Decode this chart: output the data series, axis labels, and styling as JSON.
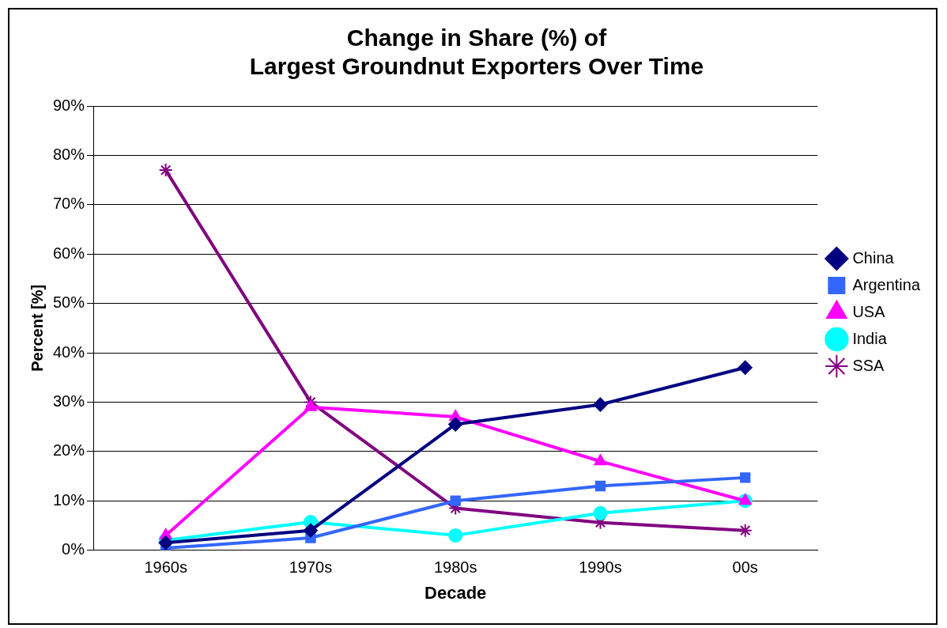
{
  "chart_data": {
    "type": "line",
    "title": [
      "Change in Share (%) of",
      "Largest Groundnut Exporters Over Time"
    ],
    "xlabel": "Decade",
    "ylabel": "Percent [%]",
    "categories": [
      "1960s",
      "1970s",
      "1980s",
      "1990s",
      "00s"
    ],
    "ylim": [
      0,
      90
    ],
    "yticks": [
      {
        "value": 0,
        "label": "0%"
      },
      {
        "value": 10,
        "label": "10%"
      },
      {
        "value": 20,
        "label": "20%"
      },
      {
        "value": 30,
        "label": "30%"
      },
      {
        "value": 40,
        "label": "40%"
      },
      {
        "value": 50,
        "label": "50%"
      },
      {
        "value": 60,
        "label": "60%"
      },
      {
        "value": 70,
        "label": "70%"
      },
      {
        "value": 80,
        "label": "80%"
      },
      {
        "value": 90,
        "label": "90%"
      }
    ],
    "grid": "y",
    "legend": "right",
    "series": [
      {
        "name": "China",
        "color": "#000080",
        "marker": "diamond",
        "values": [
          1.5,
          4,
          25.5,
          29.5,
          37
        ]
      },
      {
        "name": "Argentina",
        "color": "#3366ff",
        "marker": "square",
        "values": [
          0.4,
          2.5,
          10,
          13,
          14.7
        ]
      },
      {
        "name": "USA",
        "color": "#ff00ff",
        "marker": "triangle",
        "values": [
          3,
          29,
          27,
          18,
          10
        ]
      },
      {
        "name": "India",
        "color": "#00ffff",
        "marker": "circle",
        "values": [
          2,
          5.7,
          3,
          7.5,
          10
        ]
      },
      {
        "name": "SSA",
        "color": "#800080",
        "marker": "cross",
        "values": [
          77,
          30,
          8.5,
          5.6,
          4
        ]
      }
    ]
  }
}
